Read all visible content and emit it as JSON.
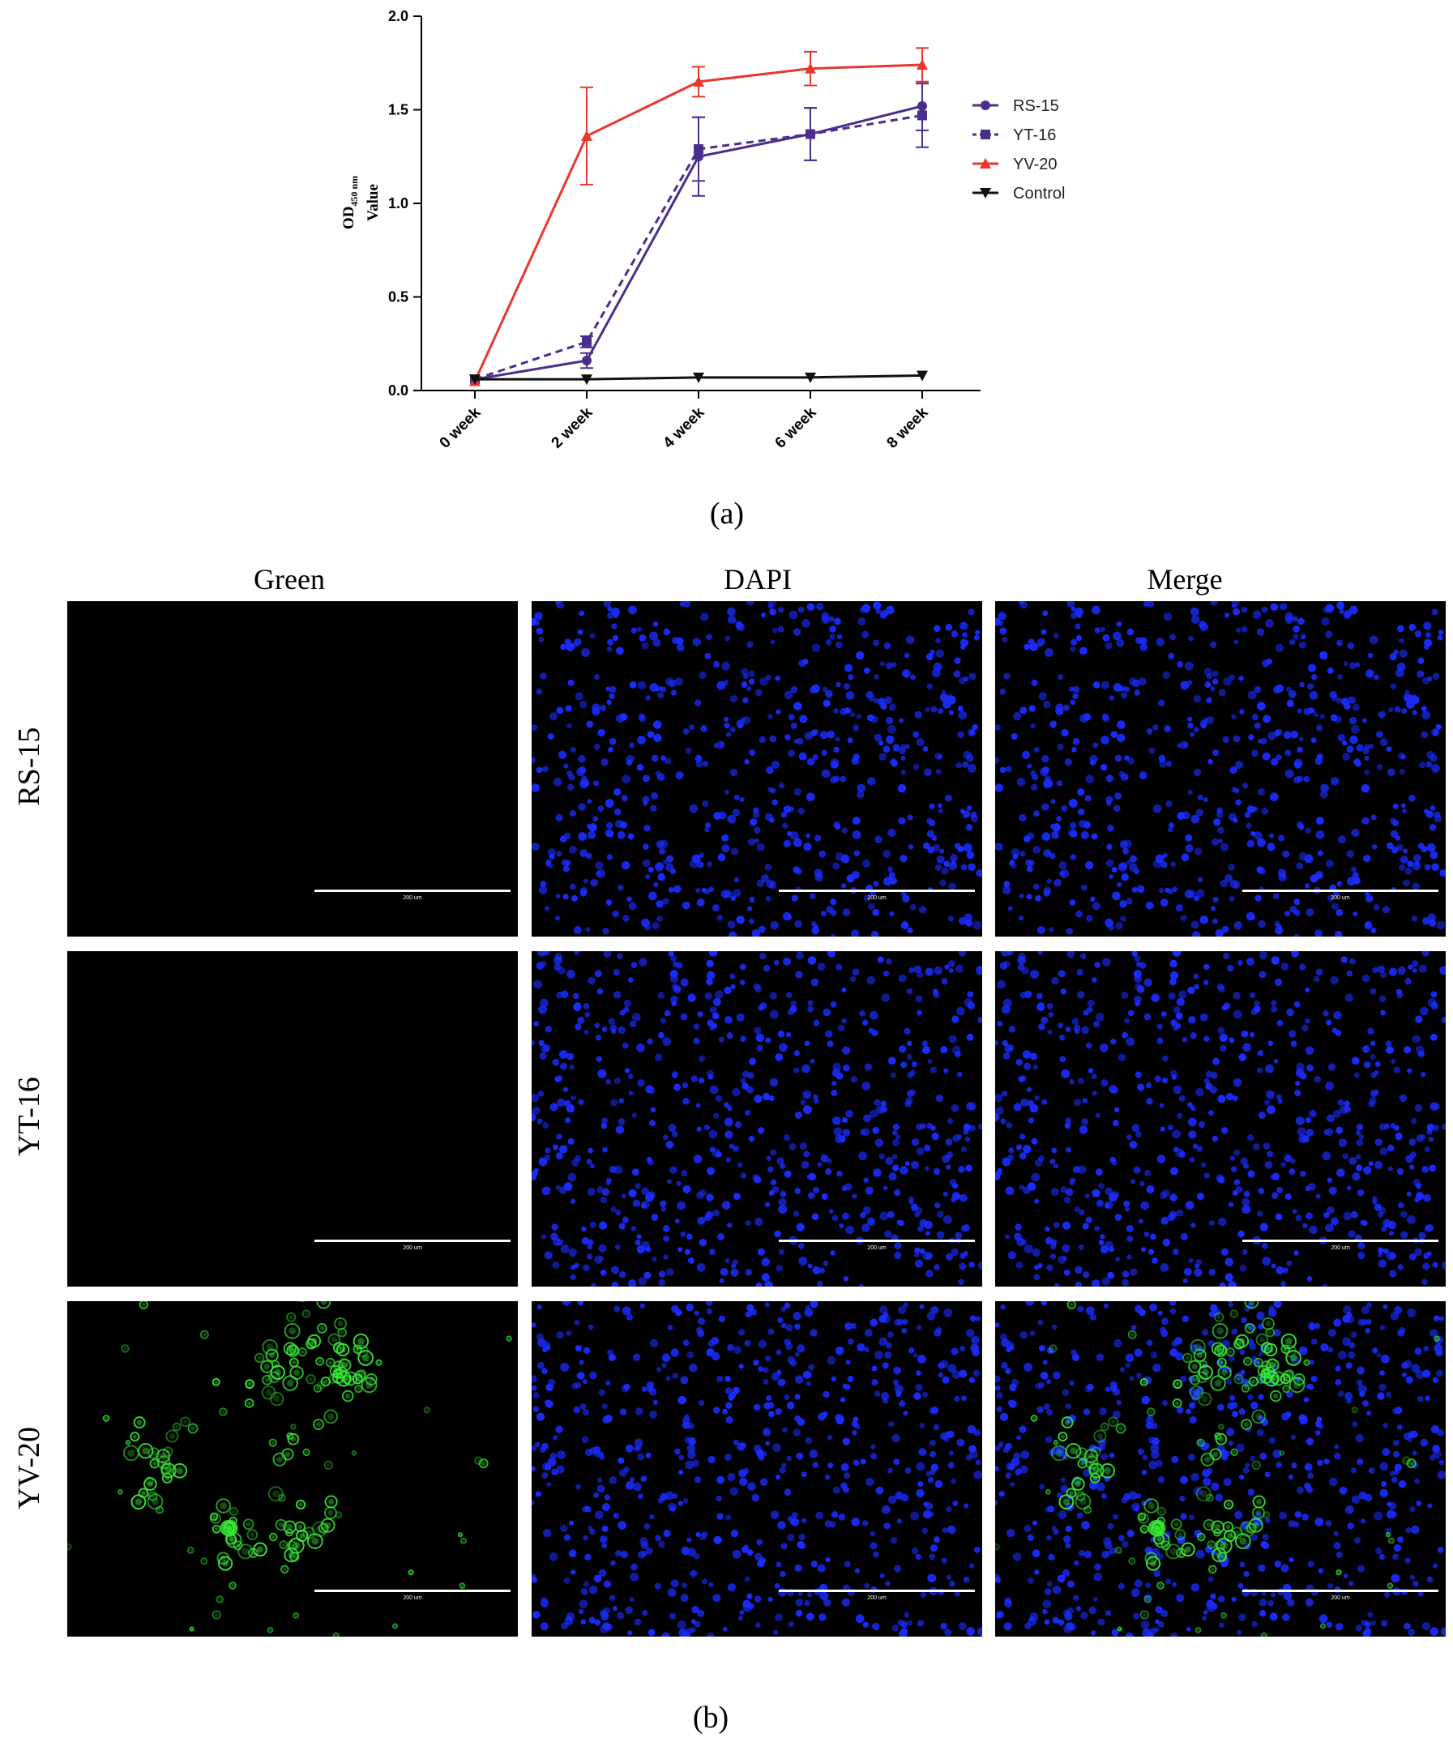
{
  "chart_data": {
    "type": "line",
    "title": "",
    "xlabel": "",
    "ylabel_main": "OD",
    "ylabel_sub": "450 nm",
    "ylabel_second": "Value",
    "categories": [
      "0 week",
      "2 week",
      "4 week",
      "6 week",
      "8 week"
    ],
    "yticks": [
      "0.0",
      "0.5",
      "1.0",
      "1.5",
      "2.0"
    ],
    "ylim": [
      0,
      2.0
    ],
    "grid": false,
    "legend_position": "right",
    "series": [
      {
        "name": "RS-15",
        "values": [
          0.06,
          0.16,
          1.25,
          1.37,
          1.52
        ],
        "errors": [
          0.01,
          0.04,
          0.21,
          0.14,
          0.13
        ],
        "color": "#4b2e8c",
        "dash": "",
        "marker": "circle"
      },
      {
        "name": "YT-16",
        "values": [
          0.06,
          0.26,
          1.29,
          1.37,
          1.47
        ],
        "errors": [
          0.01,
          0.03,
          0.17,
          0.14,
          0.17
        ],
        "color": "#4b2e8c",
        "dash": "9,6",
        "marker": "square"
      },
      {
        "name": "YV-20",
        "values": [
          0.05,
          1.36,
          1.65,
          1.72,
          1.74
        ],
        "errors": [
          0.01,
          0.26,
          0.08,
          0.09,
          0.09
        ],
        "color": "#e8372f",
        "dash": "",
        "marker": "triangle-up"
      },
      {
        "name": "Control",
        "values": [
          0.06,
          0.06,
          0.07,
          0.07,
          0.08
        ],
        "errors": [
          0,
          0,
          0,
          0,
          0
        ],
        "color": "#111111",
        "dash": "",
        "marker": "triangle-down"
      }
    ]
  },
  "caption_a": "(a)",
  "caption_b": "(b)",
  "microscopy": {
    "columns": [
      "Green",
      "DAPI",
      "Merge"
    ],
    "rows": [
      "RS-15",
      "YT-16",
      "YV-20"
    ],
    "scale_labels": [
      "200 um",
      "200 um",
      "200 um"
    ],
    "colors": {
      "nuclei": "#1a2cff",
      "green_stain": "#38e838",
      "background": "#000000"
    }
  }
}
